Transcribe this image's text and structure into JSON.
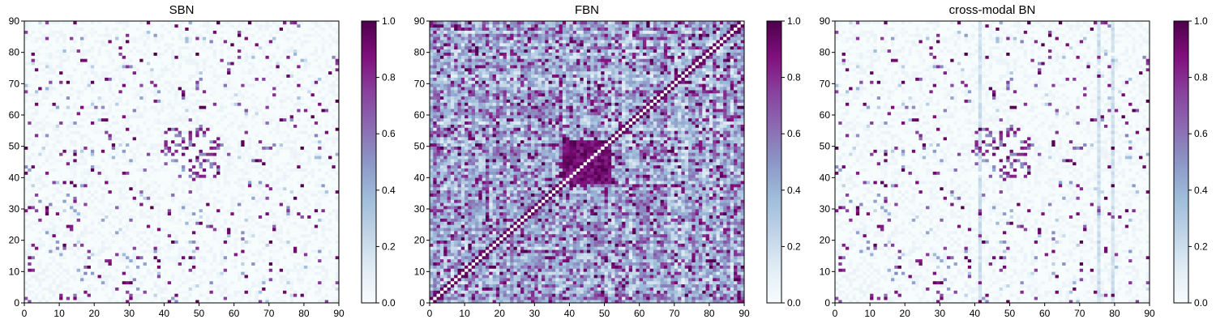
{
  "chart_data": [
    {
      "type": "heatmap",
      "title": "SBN",
      "xlim": [
        0,
        90
      ],
      "ylim": [
        0,
        90
      ],
      "x_ticks": [
        "0",
        "10",
        "20",
        "30",
        "40",
        "50",
        "60",
        "70",
        "80",
        "90"
      ],
      "y_ticks": [
        "0",
        "10",
        "20",
        "30",
        "40",
        "50",
        "60",
        "70",
        "80",
        "90"
      ],
      "colorbar": {
        "range": [
          0.0,
          1.0
        ],
        "ticks": [
          "0.0",
          "0.2",
          "0.4",
          "0.6",
          "0.8",
          "1.0"
        ],
        "colormap": "BuPu"
      },
      "values_description": "sparse symmetric connectivity matrix; mostly near 0 with scattered strong (~1.0) cells"
    },
    {
      "type": "heatmap",
      "title": "FBN",
      "xlim": [
        0,
        90
      ],
      "ylim": [
        0,
        90
      ],
      "x_ticks": [
        "0",
        "10",
        "20",
        "30",
        "40",
        "50",
        "60",
        "70",
        "80",
        "90"
      ],
      "y_ticks": [
        "0",
        "10",
        "20",
        "30",
        "40",
        "50",
        "60",
        "70",
        "80",
        "90"
      ],
      "colorbar": {
        "range": [
          0.0,
          1.0
        ],
        "ticks": [
          "0.0",
          "0.2",
          "0.4",
          "0.6",
          "0.8",
          "1.0"
        ],
        "colormap": "BuPu"
      },
      "values_description": "dense symmetric connectivity matrix; values spread 0.1-1.0 with strong diagonal band and block structure"
    },
    {
      "type": "heatmap",
      "title": "cross-modal BN",
      "xlim": [
        0,
        90
      ],
      "ylim": [
        0,
        90
      ],
      "x_ticks": [
        "0",
        "10",
        "20",
        "30",
        "40",
        "50",
        "60",
        "70",
        "80",
        "90"
      ],
      "y_ticks": [
        "0",
        "10",
        "20",
        "30",
        "40",
        "50",
        "60",
        "70",
        "80",
        "90"
      ],
      "colorbar": {
        "range": [
          0.0,
          1.0
        ],
        "ticks": [
          "0.0",
          "0.2",
          "0.4",
          "0.6",
          "0.8",
          "1.0"
        ],
        "colormap": "BuPu"
      },
      "values_description": "sparse connectivity matrix similar to SBN with faint vertical bands near columns 41, 75 and 79"
    }
  ]
}
